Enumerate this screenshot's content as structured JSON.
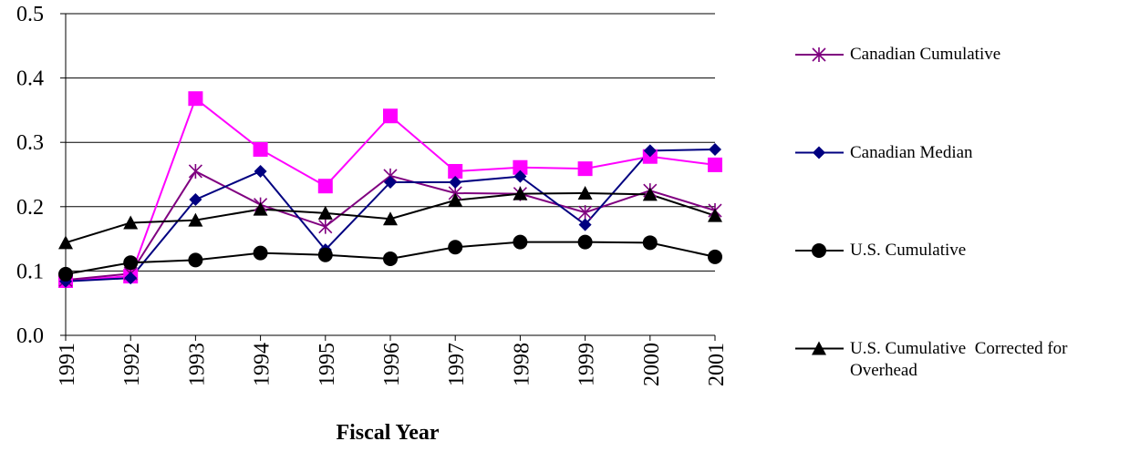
{
  "chart_data": {
    "type": "line",
    "xlabel": "Fiscal Year",
    "categories": [
      "1991",
      "1992",
      "1993",
      "1994",
      "1995",
      "1996",
      "1997",
      "1998",
      "1999",
      "2000",
      "2001"
    ],
    "ylim": [
      0,
      0.5
    ],
    "yticks": [
      {
        "value": 0,
        "label": "0.0"
      },
      0.1,
      0.2,
      0.3,
      0.4,
      0.5
    ],
    "grid": true,
    "series": [
      {
        "color": "#ff00ff",
        "marker": "square",
        "values": [
          0.085,
          0.092,
          0.368,
          0.289,
          0.232,
          0.341,
          0.255,
          0.261,
          0.259,
          0.278,
          0.265
        ]
      },
      {
        "name": "Canadian Cumulative",
        "color": "#800080",
        "marker": "star",
        "values": [
          0.086,
          0.096,
          0.255,
          0.203,
          0.169,
          0.248,
          0.221,
          0.22,
          0.191,
          0.225,
          0.194
        ]
      },
      {
        "name": "Canadian Median",
        "color": "#000080",
        "marker": "diamond",
        "values": [
          0.084,
          0.089,
          0.211,
          0.255,
          0.133,
          0.238,
          0.238,
          0.247,
          0.172,
          0.287,
          0.289
        ]
      },
      {
        "name": "U.S. Cumulative",
        "color": "#000000",
        "marker": "circle",
        "values": [
          0.095,
          0.113,
          0.117,
          0.128,
          0.125,
          0.119,
          0.137,
          0.145,
          0.145,
          0.144,
          0.122
        ]
      },
      {
        "name": "U.S. Cumulative  Corrected for Overhead",
        "color": "#000000",
        "marker": "triangle",
        "values": [
          0.144,
          0.175,
          0.179,
          0.196,
          0.19,
          0.181,
          0.21,
          0.22,
          0.221,
          0.219,
          0.186
        ]
      }
    ]
  }
}
